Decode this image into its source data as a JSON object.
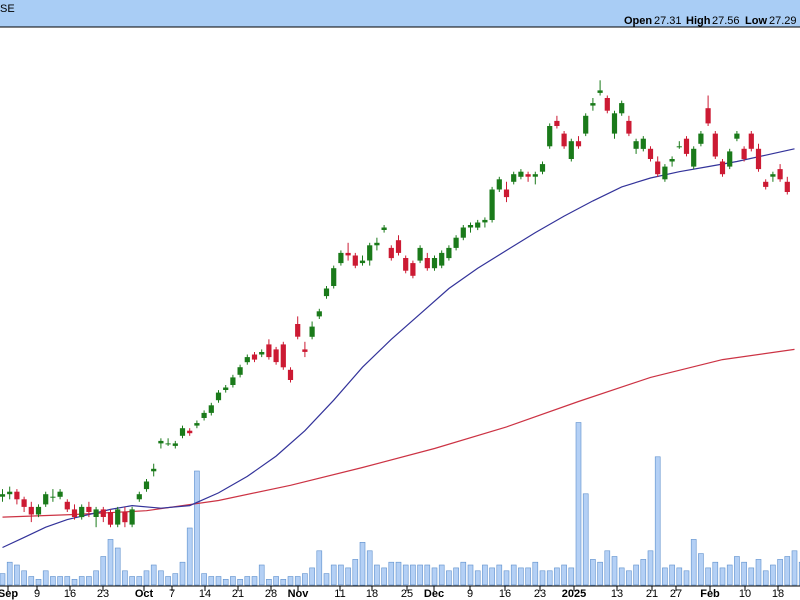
{
  "header": {
    "title_fragment": "SE",
    "ohlc": [
      {
        "label": "Open",
        "value": "27.31"
      },
      {
        "label": "High",
        "value": "27.56"
      },
      {
        "label": "Low",
        "value": "27.29"
      }
    ]
  },
  "colors": {
    "header_bg": "#a9cdf5",
    "up": "#1a7a1a",
    "down": "#cc1a33",
    "ma_short": "#33339a",
    "ma_long": "#cc3344",
    "volume_fill": "#b4d0f5",
    "volume_edge": "#5e8fcc",
    "axis": "#000000"
  },
  "chart_data": {
    "type": "candlestick",
    "x_axis_ticks": [
      {
        "label": "Sep",
        "bold": true
      },
      {
        "label": "9",
        "bold": false
      },
      {
        "label": "16",
        "bold": false
      },
      {
        "label": "23",
        "bold": false
      },
      {
        "label": "Oct",
        "bold": true
      },
      {
        "label": "7",
        "bold": false
      },
      {
        "label": "14",
        "bold": false
      },
      {
        "label": "21",
        "bold": false
      },
      {
        "label": "28",
        "bold": false
      },
      {
        "label": "Nov",
        "bold": true
      },
      {
        "label": "11",
        "bold": false
      },
      {
        "label": "18",
        "bold": false
      },
      {
        "label": "25",
        "bold": false
      },
      {
        "label": "Dec",
        "bold": true
      },
      {
        "label": "9",
        "bold": false
      },
      {
        "label": "16",
        "bold": false
      },
      {
        "label": "23",
        "bold": false
      },
      {
        "label": "2025",
        "bold": true
      },
      {
        "label": "13",
        "bold": false
      },
      {
        "label": "21",
        "bold": false
      },
      {
        "label": "27",
        "bold": false
      },
      {
        "label": "Feb",
        "bold": true
      },
      {
        "label": "10",
        "bold": false
      },
      {
        "label": "18",
        "bold": false
      }
    ],
    "series": [
      {
        "kind": "candles",
        "ohlc": [
          [
            10.2,
            10.5,
            10.0,
            10.3
          ],
          [
            10.3,
            10.6,
            10.1,
            10.4
          ],
          [
            10.4,
            10.5,
            9.9,
            10.1
          ],
          [
            10.1,
            10.2,
            9.6,
            9.8
          ],
          [
            9.8,
            10.0,
            9.2,
            9.5
          ],
          [
            9.5,
            9.9,
            9.4,
            9.8
          ],
          [
            9.9,
            10.4,
            9.8,
            10.3
          ],
          [
            10.2,
            10.5,
            10.0,
            10.2
          ],
          [
            10.2,
            10.5,
            10.1,
            10.4
          ],
          [
            10.0,
            10.1,
            9.6,
            9.7
          ],
          [
            9.7,
            9.9,
            9.3,
            9.4
          ],
          [
            9.4,
            9.9,
            9.3,
            9.8
          ],
          [
            9.8,
            10.0,
            9.4,
            9.6
          ],
          [
            9.4,
            9.8,
            9.0,
            9.7
          ],
          [
            9.7,
            9.8,
            9.2,
            9.4
          ],
          [
            9.6,
            9.7,
            9.0,
            9.1
          ],
          [
            9.1,
            9.8,
            9.0,
            9.7
          ],
          [
            9.6,
            9.8,
            9.0,
            9.2
          ],
          [
            9.1,
            9.8,
            9.0,
            9.7
          ],
          [
            10.1,
            10.4,
            10.0,
            10.3
          ],
          [
            10.5,
            10.9,
            10.4,
            10.8
          ],
          [
            11.2,
            11.5,
            11.0,
            11.3
          ],
          [
            12.3,
            12.5,
            12.1,
            12.4
          ],
          [
            12.3,
            12.5,
            12.2,
            12.3
          ],
          [
            12.2,
            12.4,
            12.1,
            12.3
          ],
          [
            12.6,
            13.0,
            12.5,
            12.9
          ],
          [
            12.8,
            12.9,
            12.6,
            12.7
          ],
          [
            13.0,
            13.2,
            12.9,
            13.1
          ],
          [
            13.3,
            13.6,
            13.2,
            13.5
          ],
          [
            13.5,
            13.9,
            13.4,
            13.8
          ],
          [
            14.0,
            14.4,
            13.9,
            14.3
          ],
          [
            14.4,
            14.6,
            14.3,
            14.5
          ],
          [
            14.6,
            15.0,
            14.5,
            14.9
          ],
          [
            15.0,
            15.4,
            14.9,
            15.3
          ],
          [
            15.5,
            15.8,
            15.4,
            15.7
          ],
          [
            15.8,
            15.9,
            15.5,
            15.6
          ],
          [
            15.8,
            16.0,
            15.7,
            15.9
          ],
          [
            16.2,
            16.4,
            15.6,
            15.7
          ],
          [
            16.0,
            16.1,
            15.4,
            15.5
          ],
          [
            16.2,
            16.3,
            15.2,
            15.3
          ],
          [
            15.2,
            15.3,
            14.7,
            14.8
          ],
          [
            17.0,
            17.3,
            16.4,
            16.5
          ],
          [
            16.0,
            16.3,
            15.7,
            15.9
          ],
          [
            16.5,
            17.1,
            16.4,
            16.9
          ],
          [
            17.3,
            17.6,
            17.2,
            17.5
          ],
          [
            18.1,
            18.5,
            18.0,
            18.4
          ],
          [
            18.5,
            19.3,
            18.4,
            19.2
          ],
          [
            19.4,
            19.9,
            19.3,
            19.8
          ],
          [
            19.8,
            20.2,
            19.5,
            19.7
          ],
          [
            19.7,
            19.8,
            19.2,
            19.3
          ],
          [
            19.4,
            19.7,
            19.3,
            19.5
          ],
          [
            19.5,
            20.2,
            19.3,
            20.1
          ],
          [
            20.1,
            20.4,
            19.9,
            20.2
          ],
          [
            20.7,
            20.9,
            20.6,
            20.8
          ],
          [
            20.0,
            20.1,
            19.5,
            19.6
          ],
          [
            20.3,
            20.5,
            19.7,
            19.8
          ],
          [
            19.6,
            19.7,
            19.0,
            19.1
          ],
          [
            19.4,
            19.5,
            18.8,
            18.9
          ],
          [
            19.5,
            20.1,
            19.4,
            20.0
          ],
          [
            19.6,
            19.8,
            19.1,
            19.2
          ],
          [
            19.2,
            19.7,
            19.1,
            19.6
          ],
          [
            19.3,
            19.9,
            19.2,
            19.8
          ],
          [
            19.6,
            20.1,
            19.5,
            20.0
          ],
          [
            20.0,
            20.5,
            19.9,
            20.4
          ],
          [
            20.4,
            20.9,
            20.3,
            20.8
          ],
          [
            20.8,
            21.0,
            20.6,
            20.9
          ],
          [
            20.8,
            21.1,
            20.7,
            21.0
          ],
          [
            21.0,
            21.2,
            20.8,
            21.1
          ],
          [
            21.1,
            22.4,
            21.0,
            22.3
          ],
          [
            22.3,
            22.8,
            22.2,
            22.7
          ],
          [
            22.3,
            22.6,
            21.8,
            22.0
          ],
          [
            22.6,
            23.0,
            22.5,
            22.9
          ],
          [
            22.8,
            23.1,
            22.7,
            23.0
          ],
          [
            22.9,
            23.0,
            22.6,
            22.8
          ],
          [
            22.8,
            23.0,
            22.5,
            22.9
          ],
          [
            23.0,
            23.4,
            22.9,
            23.3
          ],
          [
            24.0,
            24.9,
            23.9,
            24.8
          ],
          [
            25.0,
            25.2,
            24.7,
            24.8
          ],
          [
            24.5,
            24.6,
            23.9,
            24.0
          ],
          [
            23.5,
            24.3,
            23.4,
            24.2
          ],
          [
            24.2,
            24.4,
            23.9,
            24.0
          ],
          [
            24.5,
            25.3,
            24.4,
            25.2
          ],
          [
            25.6,
            25.9,
            25.4,
            25.7
          ],
          [
            26.1,
            26.6,
            26.0,
            26.2
          ],
          [
            25.9,
            26.0,
            25.3,
            25.4
          ],
          [
            24.5,
            25.4,
            24.3,
            25.3
          ],
          [
            25.3,
            25.8,
            25.2,
            25.7
          ],
          [
            25.0,
            25.2,
            24.4,
            24.5
          ],
          [
            23.9,
            24.3,
            23.7,
            24.2
          ],
          [
            23.9,
            24.4,
            23.8,
            24.3
          ],
          [
            23.9,
            24.0,
            23.4,
            23.5
          ],
          [
            23.4,
            23.6,
            22.8,
            22.9
          ],
          [
            22.7,
            23.3,
            22.6,
            23.2
          ],
          [
            23.4,
            23.6,
            23.2,
            23.5
          ],
          [
            24.0,
            24.2,
            23.9,
            24.0
          ],
          [
            24.3,
            24.4,
            23.6,
            23.7
          ],
          [
            23.2,
            24.0,
            23.1,
            23.9
          ],
          [
            24.1,
            24.6,
            24.0,
            24.5
          ],
          [
            25.5,
            26.0,
            24.8,
            24.9
          ],
          [
            24.5,
            24.6,
            23.5,
            23.6
          ],
          [
            23.4,
            23.5,
            22.8,
            22.9
          ],
          [
            23.2,
            23.9,
            23.1,
            23.8
          ],
          [
            24.3,
            24.6,
            24.2,
            24.5
          ],
          [
            23.9,
            24.0,
            23.4,
            23.5
          ],
          [
            24.5,
            24.6,
            23.8,
            23.9
          ],
          [
            23.9,
            24.1,
            23.0,
            23.1
          ],
          [
            22.6,
            22.7,
            22.3,
            22.4
          ],
          [
            22.8,
            23.0,
            22.6,
            22.9
          ],
          [
            23.1,
            23.3,
            22.6,
            22.7
          ],
          [
            22.6,
            22.8,
            22.1,
            22.2
          ]
        ]
      },
      {
        "name": "",
        "kind": "moving_average_short",
        "points": [
          [
            0,
            8.2
          ],
          [
            3,
            8.6
          ],
          [
            6,
            9.0
          ],
          [
            9,
            9.3
          ],
          [
            12,
            9.5
          ],
          [
            15,
            9.7
          ],
          [
            18,
            9.85
          ],
          [
            22,
            9.75
          ],
          [
            26,
            9.85
          ],
          [
            30,
            10.35
          ],
          [
            34,
            11.0
          ],
          [
            38,
            11.8
          ],
          [
            42,
            12.8
          ],
          [
            46,
            14.0
          ],
          [
            50,
            15.3
          ],
          [
            54,
            16.4
          ],
          [
            58,
            17.4
          ],
          [
            62,
            18.4
          ],
          [
            66,
            19.2
          ],
          [
            70,
            19.9
          ],
          [
            74,
            20.6
          ],
          [
            78,
            21.25
          ],
          [
            82,
            21.85
          ],
          [
            86,
            22.4
          ],
          [
            90,
            22.75
          ],
          [
            94,
            23.0
          ],
          [
            98,
            23.2
          ],
          [
            102,
            23.4
          ],
          [
            106,
            23.65
          ],
          [
            110,
            23.9
          ]
        ]
      },
      {
        "name": "",
        "kind": "moving_average_long",
        "points": [
          [
            0,
            9.4
          ],
          [
            10,
            9.5
          ],
          [
            20,
            9.65
          ],
          [
            30,
            10.05
          ],
          [
            40,
            10.65
          ],
          [
            50,
            11.35
          ],
          [
            60,
            12.1
          ],
          [
            70,
            12.95
          ],
          [
            80,
            13.95
          ],
          [
            90,
            14.9
          ],
          [
            100,
            15.6
          ],
          [
            110,
            16.0
          ]
        ]
      },
      {
        "name": "",
        "kind": "volume",
        "values": [
          4,
          8,
          7,
          5,
          3,
          2,
          5,
          3,
          3,
          3,
          2,
          3,
          3,
          5,
          10,
          16,
          13,
          5,
          3,
          3,
          5,
          7,
          5,
          3,
          4,
          8,
          20,
          40,
          4,
          3,
          3,
          2,
          3,
          2,
          3,
          3,
          7,
          2,
          3,
          2,
          3,
          3,
          4,
          6,
          12,
          4,
          7,
          7,
          6,
          9,
          15,
          12,
          7,
          6,
          8,
          8,
          7,
          7,
          7,
          7,
          6,
          7,
          5,
          6,
          8,
          7,
          5,
          7,
          6,
          7,
          5,
          7,
          6,
          6,
          8,
          5,
          5,
          6,
          7,
          6,
          57,
          32,
          9,
          8,
          12,
          10,
          6,
          5,
          7,
          9,
          12,
          45,
          6,
          7,
          6,
          5,
          16,
          11,
          6,
          8,
          6,
          7,
          10,
          8,
          6,
          9,
          5,
          7,
          9,
          10,
          12,
          8
        ]
      }
    ],
    "grid": false,
    "legend": "none"
  }
}
